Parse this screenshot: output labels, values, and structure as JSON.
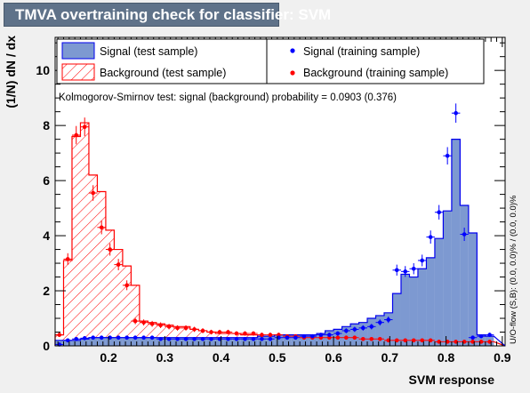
{
  "canvas_title": "TMVA overtraining check for classifier: SVM",
  "chart_data": {
    "type": "histogram",
    "xlabel": "SVM response",
    "ylabel": "(1/N) dN / dx",
    "xlim": [
      0.105,
      0.905
    ],
    "ylim": [
      0,
      11.2
    ],
    "xticks": [
      "0.2",
      "0.3",
      "0.4",
      "0.5",
      "0.6",
      "0.7",
      "0.8",
      "0.9"
    ],
    "yticks": [
      "0",
      "2",
      "4",
      "6",
      "8",
      "10"
    ],
    "bin_edges": [
      0.105,
      0.12,
      0.135,
      0.15,
      0.165,
      0.18,
      0.195,
      0.21,
      0.225,
      0.24,
      0.255,
      0.27,
      0.285,
      0.3,
      0.315,
      0.33,
      0.345,
      0.36,
      0.375,
      0.39,
      0.405,
      0.42,
      0.435,
      0.45,
      0.465,
      0.48,
      0.495,
      0.51,
      0.525,
      0.54,
      0.555,
      0.57,
      0.585,
      0.6,
      0.615,
      0.63,
      0.645,
      0.66,
      0.675,
      0.69,
      0.705,
      0.72,
      0.735,
      0.75,
      0.765,
      0.78,
      0.795,
      0.81,
      0.825,
      0.84,
      0.855,
      0.87,
      0.885,
      0.905
    ],
    "annotation": "Kolmogorov-Smirnov test: signal (background) probability = 0.0903 (0.376)",
    "side_text": "U/O-flow (S,B): (0.0, 0.0)% / (0.0, 0.0)%",
    "legend": {
      "signal_test": "Signal (test sample)",
      "background_test": "Background (test sample)",
      "signal_train": "Signal (training sample)",
      "background_train": "Background (training sample)"
    },
    "colors": {
      "signal_fill": "#7d99d1",
      "signal_line": "#0000ee",
      "background_line": "#ff0000",
      "signal_train_marker": "#0000ff",
      "background_train_marker": "#ff0000"
    },
    "series": [
      {
        "name": "Signal (test sample)",
        "style": "filled-histogram",
        "values": [
          0.2,
          0.2,
          0.2,
          0.25,
          0.3,
          0.3,
          0.3,
          0.3,
          0.3,
          0.3,
          0.3,
          0.3,
          0.3,
          0.3,
          0.3,
          0.3,
          0.3,
          0.3,
          0.3,
          0.3,
          0.3,
          0.3,
          0.3,
          0.3,
          0.35,
          0.35,
          0.4,
          0.4,
          0.4,
          0.4,
          0.4,
          0.45,
          0.55,
          0.6,
          0.7,
          0.8,
          0.85,
          1.0,
          1.1,
          1.2,
          1.9,
          2.6,
          2.5,
          2.8,
          3.2,
          3.9,
          4.9,
          7.5,
          5.1,
          4.1,
          0.4,
          0.35
        ]
      },
      {
        "name": "Background (test sample)",
        "style": "hatched-histogram",
        "values": [
          0.4,
          3.1,
          7.6,
          8.1,
          6.2,
          5.6,
          4.2,
          3.5,
          2.9,
          2.2,
          0.9,
          0.85,
          0.8,
          0.75,
          0.7,
          0.7,
          0.6,
          0.55,
          0.5,
          0.45,
          0.45,
          0.45,
          0.4,
          0.4,
          0.35,
          0.35,
          0.35,
          0.3,
          0.3,
          0.25,
          0.25,
          0.25,
          0.25,
          0.3,
          0.25,
          0.25,
          0.25,
          0.2,
          0.2,
          0.2,
          0.2,
          0.2,
          0.2,
          0.2,
          0.2,
          0.15,
          0.15,
          0.15,
          0.15,
          0.15,
          0.15,
          0.15
        ]
      },
      {
        "name": "Signal (training sample)",
        "style": "points",
        "values": [
          0.05,
          0.2,
          0.25,
          0.28,
          0.3,
          0.3,
          0.3,
          0.3,
          0.3,
          0.3,
          0.3,
          0.3,
          0.25,
          0.25,
          0.25,
          0.25,
          0.25,
          0.25,
          0.25,
          0.25,
          0.25,
          0.25,
          0.25,
          0.25,
          0.25,
          0.25,
          0.3,
          0.3,
          0.3,
          0.35,
          0.35,
          0.4,
          0.4,
          0.45,
          0.55,
          0.6,
          0.65,
          0.7,
          0.85,
          0.95,
          2.75,
          2.7,
          2.8,
          3.1,
          3.95,
          4.85,
          6.9,
          8.45,
          4.05,
          0.3,
          0.35,
          0.4
        ]
      },
      {
        "name": "Background (training sample)",
        "style": "points",
        "values": [
          0.4,
          3.15,
          7.65,
          7.95,
          5.55,
          4.3,
          3.5,
          2.95,
          2.2,
          0.9,
          0.85,
          0.8,
          0.75,
          0.7,
          0.65,
          0.65,
          0.6,
          0.55,
          0.5,
          0.5,
          0.5,
          0.45,
          0.45,
          0.45,
          0.4,
          0.4,
          0.4,
          0.35,
          0.35,
          0.3,
          0.3,
          0.3,
          0.3,
          0.3,
          0.3,
          0.3,
          0.25,
          0.25,
          0.25,
          0.2,
          0.2,
          0.2,
          0.2,
          0.2,
          0.2,
          0.15,
          0.15,
          0.15,
          0.15,
          0.15,
          0.15,
          0.15
        ]
      }
    ]
  }
}
